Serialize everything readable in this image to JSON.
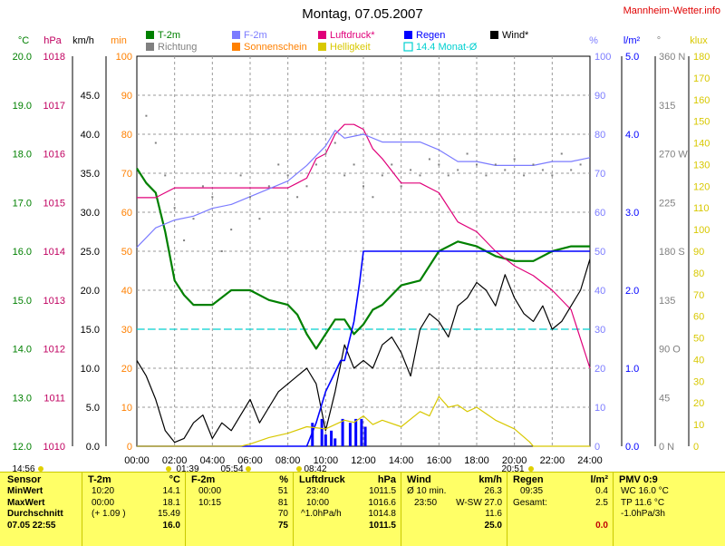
{
  "chart_data": {
    "type": "line",
    "title": "Montag, 07.05.2007",
    "site": "Mannheim-Wetter.info",
    "x_axis": {
      "ticks": [
        "00:00",
        "02:00",
        "04:00",
        "06:00",
        "08:00",
        "10:00",
        "12:00",
        "14:00",
        "16:00",
        "18:00",
        "20:00",
        "22:00",
        "24:00"
      ],
      "range_hours": [
        0,
        24
      ]
    },
    "legend": [
      {
        "label": "T-2m",
        "color": "#008000"
      },
      {
        "label": "Richtung",
        "color": "#808080"
      },
      {
        "label": "F-2m",
        "color": "#7b7bff"
      },
      {
        "label": "Sonnenschein",
        "color": "#ff8000"
      },
      {
        "label": "Luftdruck*",
        "color": "#e0007a"
      },
      {
        "label": "Helligkeit",
        "color": "#d8c800"
      },
      {
        "label": "Regen",
        "color": "#0000ff"
      },
      {
        "label": "14.4 Monat-Ø",
        "color": "#00d0d0"
      },
      {
        "label": "Wind*",
        "color": "#000000"
      }
    ],
    "axes": [
      {
        "unit": "°C",
        "color": "#008000",
        "ticks": [
          "12.0",
          "13.0",
          "14.0",
          "15.0",
          "16.0",
          "17.0",
          "18.0",
          "19.0",
          "20.0"
        ],
        "range": [
          12,
          20
        ]
      },
      {
        "unit": "hPa",
        "color": "#c00060",
        "ticks": [
          "1010",
          "1011",
          "1012",
          "1013",
          "1014",
          "1015",
          "1016",
          "1017",
          "1018"
        ],
        "range": [
          1010,
          1018
        ]
      },
      {
        "unit": "km/h",
        "color": "#000000",
        "ticks": [
          "0.0",
          "5.0",
          "10.0",
          "15.0",
          "20.0",
          "25.0",
          "30.0",
          "35.0",
          "40.0",
          "45.0"
        ],
        "range": [
          0,
          50
        ]
      },
      {
        "unit": "min",
        "color": "#ff8000",
        "ticks": [
          "0",
          "10",
          "20",
          "30",
          "40",
          "50",
          "60",
          "70",
          "80",
          "90",
          "100"
        ],
        "range": [
          0,
          100
        ]
      },
      {
        "unit": "%",
        "color": "#7b7bff",
        "ticks": [
          "0",
          "10",
          "20",
          "30",
          "40",
          "50",
          "60",
          "70",
          "80",
          "90",
          "100"
        ],
        "range": [
          0,
          100
        ]
      },
      {
        "unit": "l/m²",
        "color": "#0000ff",
        "ticks": [
          "0.0",
          "1.0",
          "2.0",
          "3.0",
          "4.0",
          "5.0"
        ],
        "range": [
          0,
          5
        ]
      },
      {
        "unit": "°",
        "color": "#808080",
        "ticks": [
          "0 N",
          "45",
          "90 O",
          "135",
          "180 S",
          "225",
          "270 W",
          "315",
          "360 N"
        ],
        "range": [
          0,
          360
        ]
      },
      {
        "unit": "klux",
        "color": "#d8c800",
        "ticks": [
          "0",
          "10",
          "20",
          "30",
          "40",
          "50",
          "60",
          "70",
          "80",
          "90",
          "100",
          "110",
          "120",
          "130",
          "140",
          "150",
          "160",
          "170",
          "180"
        ],
        "range": [
          0,
          180
        ]
      }
    ],
    "series": [
      {
        "name": "T-2m",
        "axis": "°C",
        "color": "#008000",
        "x": [
          0,
          0.5,
          1,
          1.5,
          2,
          2.5,
          3,
          4,
          5,
          6,
          7,
          8,
          8.5,
          9,
          9.5,
          10,
          10.5,
          11,
          11.5,
          12,
          12.5,
          13,
          14,
          15,
          16,
          17,
          18,
          19,
          20,
          21,
          22,
          23,
          24
        ],
        "values": [
          17.7,
          17.4,
          17.2,
          16.4,
          15.4,
          15.1,
          14.9,
          14.9,
          15.2,
          15.2,
          15.0,
          14.9,
          14.7,
          14.3,
          14.0,
          14.3,
          14.6,
          14.6,
          14.3,
          14.5,
          14.8,
          14.9,
          15.3,
          15.4,
          16.0,
          16.2,
          16.1,
          15.9,
          15.8,
          15.8,
          16.0,
          16.1,
          16.1
        ]
      },
      {
        "name": "Luftdruck*",
        "axis": "hPa",
        "color": "#e0007a",
        "x": [
          0,
          1,
          2,
          3,
          4,
          5,
          6,
          7,
          8,
          8.5,
          9,
          9.5,
          10,
          10.5,
          11,
          11.5,
          12,
          12.5,
          13,
          14,
          15,
          16,
          17,
          18,
          19,
          20,
          21,
          22,
          23,
          24
        ],
        "values": [
          1015.1,
          1015.1,
          1015.3,
          1015.3,
          1015.3,
          1015.3,
          1015.3,
          1015.3,
          1015.3,
          1015.4,
          1015.5,
          1015.9,
          1016.0,
          1016.4,
          1016.6,
          1016.6,
          1016.5,
          1016.1,
          1015.9,
          1015.4,
          1015.4,
          1015.2,
          1014.6,
          1014.4,
          1014.0,
          1013.7,
          1013.5,
          1013.2,
          1012.8,
          1011.6
        ]
      },
      {
        "name": "F-2m",
        "axis": "%",
        "color": "#7b7bff",
        "x": [
          0,
          1,
          2,
          3,
          4,
          5,
          6,
          7,
          8,
          9,
          10,
          10.5,
          11,
          12,
          13,
          14,
          15,
          16,
          17,
          18,
          19,
          20,
          21,
          22,
          23,
          24
        ],
        "values": [
          51,
          56,
          58,
          59,
          61,
          62,
          64,
          66,
          68,
          72,
          77,
          81,
          79,
          80,
          78,
          78,
          78,
          76,
          73,
          73,
          72,
          72,
          72,
          73,
          73,
          74
        ]
      },
      {
        "name": "Wind*",
        "axis": "km/h",
        "color": "#000000",
        "x": [
          0,
          0.5,
          1,
          1.5,
          2,
          2.5,
          3,
          3.5,
          4,
          4.5,
          5,
          5.5,
          6,
          6.5,
          7,
          7.5,
          8,
          8.5,
          9,
          9.5,
          10,
          10.5,
          11,
          11.5,
          12,
          12.5,
          13,
          13.5,
          14,
          14.5,
          15,
          15.5,
          16,
          16.5,
          17,
          17.5,
          18,
          18.5,
          19,
          19.5,
          20,
          20.5,
          21,
          21.5,
          22,
          22.5,
          23,
          23.5,
          24
        ],
        "values": [
          11,
          9,
          6,
          2,
          0.5,
          1,
          3,
          4,
          1,
          3,
          2,
          4,
          6,
          3,
          5,
          7,
          8,
          9,
          10,
          8,
          2,
          7,
          13,
          10,
          11,
          10,
          13,
          14,
          12,
          9,
          15,
          17,
          16,
          14,
          18,
          19,
          21,
          20,
          18,
          22,
          19,
          17,
          16,
          18,
          15,
          16,
          18,
          20,
          24
        ]
      },
      {
        "name": "Regen",
        "axis": "l/m²",
        "color": "#0000ff",
        "x": [
          0,
          9,
          9.5,
          10,
          10.4,
          10.8,
          11,
          11.2,
          11.5,
          11.8,
          12,
          14,
          16,
          18,
          20,
          22,
          24
        ],
        "values": [
          0,
          0,
          0.3,
          0.7,
          0.9,
          1.1,
          1.1,
          1.3,
          1.6,
          2.1,
          2.5,
          2.5,
          2.5,
          2.5,
          2.5,
          2.5,
          2.5
        ]
      },
      {
        "name": "Regen (Stundenbalken)",
        "axis": "l/m²",
        "color": "#0000ff",
        "x": [
          9.3,
          9.8,
          10.0,
          10.3,
          10.5,
          10.9,
          11.3,
          11.6,
          11.9,
          12.1
        ],
        "values": [
          0.3,
          0.35,
          0.15,
          0.2,
          0.1,
          0.35,
          0.3,
          0.35,
          0.35,
          0.25
        ]
      },
      {
        "name": "Helligkeit",
        "axis": "klux",
        "color": "#d8c800",
        "x": [
          0,
          5.5,
          6,
          7,
          8,
          9,
          10,
          10.5,
          11,
          11.5,
          12,
          12.5,
          13,
          14,
          15,
          15.5,
          16,
          16.5,
          17,
          17.5,
          18,
          19,
          20,
          20.8,
          21,
          22,
          24
        ],
        "values": [
          0,
          0,
          1,
          4,
          6,
          9,
          8,
          10,
          12,
          11,
          14,
          10,
          12,
          9,
          16,
          14,
          23,
          18,
          19,
          16,
          18,
          12,
          8,
          2,
          0,
          0,
          0
        ]
      },
      {
        "name": "Richtung",
        "axis": "°",
        "color": "#808080",
        "x": [
          0,
          0.5,
          1,
          1.5,
          2,
          2.5,
          3,
          3.5,
          4,
          4.5,
          5,
          5.5,
          6,
          6.5,
          7,
          7.5,
          8,
          8.5,
          9,
          9.5,
          10,
          10.5,
          11,
          11.5,
          12,
          12.5,
          13,
          13.5,
          14,
          14.5,
          15,
          15.5,
          16,
          16.5,
          17,
          17.5,
          18,
          18.5,
          19,
          19.5,
          20,
          20.5,
          21,
          21.5,
          22,
          22.5,
          23,
          23.5,
          24
        ],
        "values": [
          300,
          305,
          280,
          250,
          220,
          190,
          210,
          240,
          230,
          180,
          200,
          250,
          230,
          210,
          240,
          260,
          250,
          230,
          240,
          260,
          270,
          280,
          250,
          260,
          240,
          230,
          250,
          260,
          240,
          255,
          250,
          265,
          260,
          250,
          255,
          270,
          260,
          250,
          260,
          255,
          265,
          250,
          260,
          255,
          250,
          270,
          255,
          260,
          250
        ]
      }
    ],
    "monthly_avg": {
      "label": "14.4 Monat-Ø",
      "value": 14.4
    },
    "markers": {
      "sunrise": "05:54",
      "sunset": "20:51",
      "other": [
        "14:56",
        "01:39",
        "08:42"
      ]
    }
  },
  "table": {
    "row_labels": [
      "Sensor",
      "MinWert",
      "MaxWert",
      "Durchschnitt"
    ],
    "row_label_extra": "07.05 22:55",
    "t2m": {
      "header": "T-2m",
      "unit": "°C",
      "rows": [
        [
          "10:20",
          "14.1"
        ],
        [
          "00:00",
          "18.1"
        ],
        [
          "(+ 1.09 )",
          "15.49"
        ]
      ],
      "extra": "16.0"
    },
    "f2m": {
      "header": "F-2m",
      "unit": "%",
      "rows": [
        [
          "00:00",
          "51"
        ],
        [
          "10:15",
          "81"
        ],
        [
          "",
          "70"
        ]
      ],
      "extra": "75"
    },
    "druck": {
      "header": "Luftdruck",
      "unit": "hPa",
      "rows": [
        [
          "23:40",
          "1011.5"
        ],
        [
          "10:00",
          "1016.6"
        ],
        [
          "^1.0hPa/h",
          "1014.8"
        ]
      ],
      "extra": "1011.5"
    },
    "wind": {
      "header": "Wind",
      "unit": "km/h",
      "rows": [
        [
          "Ø 10 min.",
          "26.3"
        ],
        [
          "23:50",
          "W-SW 27.0"
        ],
        [
          "",
          "11.6"
        ]
      ],
      "extra": "25.0"
    },
    "regen": {
      "header": "Regen",
      "unit": "l/m²",
      "rows": [
        [
          "09:35",
          "0.4"
        ],
        [
          "Gesamt:",
          "2.5"
        ],
        [
          "",
          ""
        ]
      ],
      "extra": "0.0"
    },
    "pmv": {
      "header": "PMV 0:9",
      "rows": [
        "WC 16.0 °C",
        "TP 11.6 °C",
        "-1.0hPa/3h"
      ]
    }
  }
}
